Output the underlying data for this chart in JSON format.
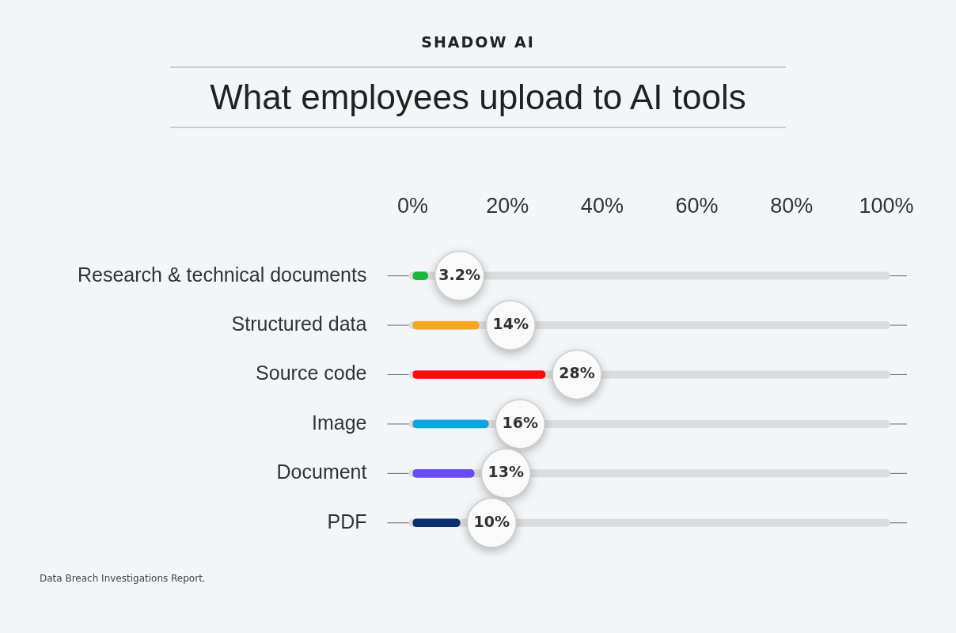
{
  "chart_data": {
    "type": "bar",
    "orientation": "horizontal",
    "subtitle": "SHADOW AI",
    "title": "What employees upload to AI tools",
    "categories": [
      "Research & technical documents",
      "Structured data",
      "Source code",
      "Image",
      "Document",
      "PDF"
    ],
    "values": [
      3.2,
      14,
      28,
      16,
      13,
      10
    ],
    "colors": [
      "#1db83a",
      "#f5a623",
      "#ff0a0a",
      "#0aa5e0",
      "#6a4cf5",
      "#0b2f6e"
    ],
    "value_labels": [
      "3.2%",
      "14%",
      "28%",
      "16%",
      "13%",
      "10%"
    ],
    "xlim": [
      0,
      100
    ],
    "xticks": [
      {
        "value": 0,
        "label": "0%"
      },
      {
        "value": 20,
        "label": "20%"
      },
      {
        "value": 40,
        "label": "40%"
      },
      {
        "value": 60,
        "label": "60%"
      },
      {
        "value": 80,
        "label": "80%"
      },
      {
        "value": 100,
        "label": "100%"
      }
    ],
    "grid": false,
    "legend": false,
    "annotations": [
      "Data Breach Investigations Report."
    ]
  }
}
